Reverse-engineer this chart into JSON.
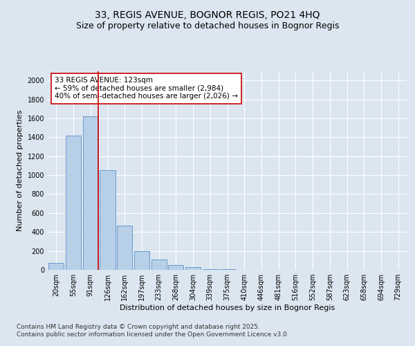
{
  "title_line1": "33, REGIS AVENUE, BOGNOR REGIS, PO21 4HQ",
  "title_line2": "Size of property relative to detached houses in Bognor Regis",
  "xlabel": "Distribution of detached houses by size in Bognor Regis",
  "ylabel": "Number of detached properties",
  "categories": [
    "20sqm",
    "55sqm",
    "91sqm",
    "126sqm",
    "162sqm",
    "197sqm",
    "233sqm",
    "268sqm",
    "304sqm",
    "339sqm",
    "375sqm",
    "410sqm",
    "446sqm",
    "481sqm",
    "516sqm",
    "552sqm",
    "587sqm",
    "623sqm",
    "658sqm",
    "694sqm",
    "729sqm"
  ],
  "values": [
    75,
    1420,
    1620,
    1050,
    470,
    200,
    110,
    50,
    30,
    10,
    5,
    0,
    0,
    0,
    0,
    0,
    0,
    0,
    0,
    0,
    0
  ],
  "bar_color": "#b8cfe8",
  "bar_edge_color": "#6699cc",
  "red_line_index": 2,
  "annotation_text": "33 REGIS AVENUE: 123sqm\n← 59% of detached houses are smaller (2,984)\n40% of semi-detached houses are larger (2,026) →",
  "annotation_box_color": "#ffffff",
  "annotation_box_edge": "#cc0000",
  "red_line_color": "#cc0000",
  "bg_color": "#dce6f0",
  "plot_bg_color": "#dce6f0",
  "grid_color": "#ffffff",
  "footer_text": "Contains HM Land Registry data © Crown copyright and database right 2025.\nContains public sector information licensed under the Open Government Licence v3.0.",
  "ylim": [
    0,
    2100
  ],
  "yticks": [
    0,
    200,
    400,
    600,
    800,
    1000,
    1200,
    1400,
    1600,
    1800,
    2000
  ],
  "title_fontsize": 10,
  "subtitle_fontsize": 9,
  "axis_label_fontsize": 8,
  "tick_fontsize": 7,
  "annotation_fontsize": 7.5,
  "footer_fontsize": 6.5
}
